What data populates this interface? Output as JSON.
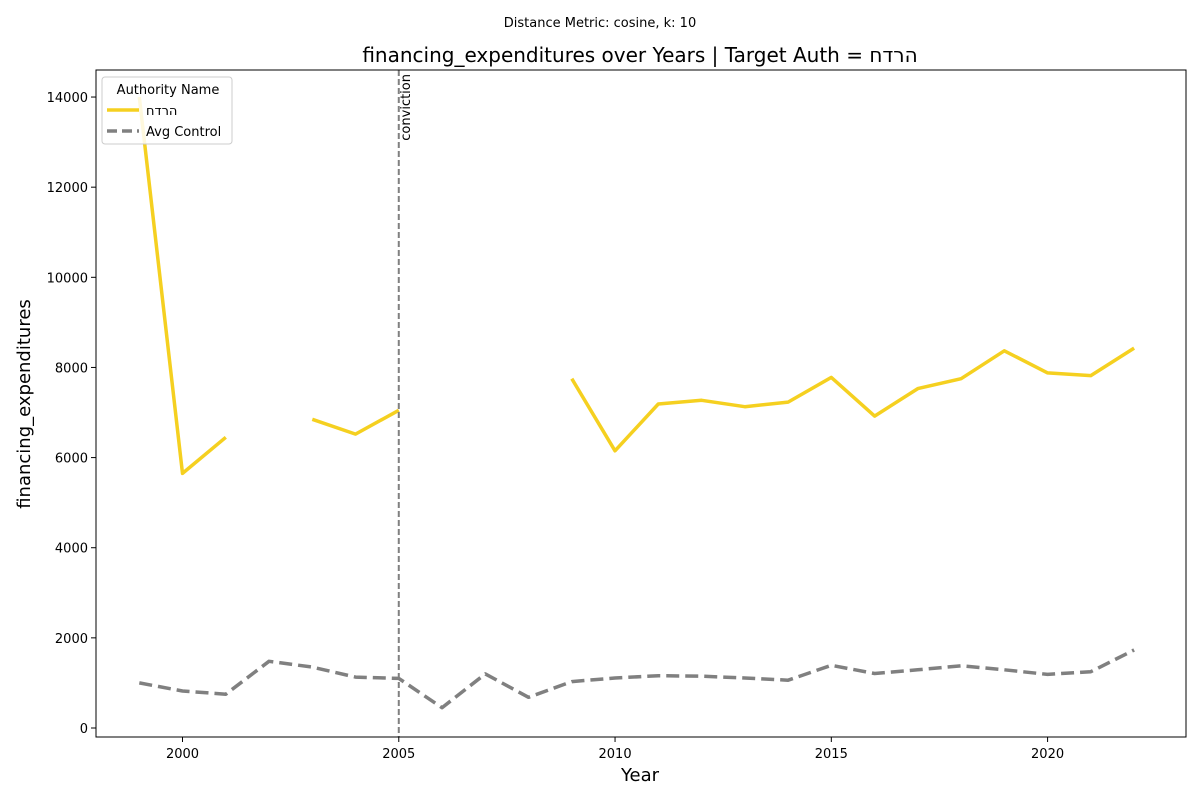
{
  "chart_data": {
    "type": "line",
    "suptitle": "Distance Metric: cosine, k: 10",
    "title": "financing_expenditures over Years | Target Auth = הרדח",
    "xlabel": "Year",
    "ylabel": "financing_expenditures",
    "xlim": [
      1998,
      2023.2
    ],
    "ylim": [
      -200,
      14600
    ],
    "xticks": [
      2000,
      2005,
      2010,
      2015,
      2020
    ],
    "yticks": [
      0,
      2000,
      4000,
      6000,
      8000,
      10000,
      12000,
      14000
    ],
    "x": [
      1999,
      2000,
      2001,
      2002,
      2003,
      2004,
      2005,
      2006,
      2007,
      2008,
      2009,
      2010,
      2011,
      2012,
      2013,
      2014,
      2015,
      2016,
      2017,
      2018,
      2019,
      2020,
      2021,
      2022
    ],
    "series": [
      {
        "name": "הרדח",
        "color": "#f5d020",
        "style": "solid",
        "values": [
          14000,
          5650,
          6450,
          null,
          6850,
          6520,
          7050,
          null,
          null,
          null,
          7750,
          6150,
          7190,
          7270,
          7130,
          7230,
          7780,
          6920,
          7530,
          7750,
          8370,
          7880,
          7820,
          8430
        ]
      },
      {
        "name": "Avg Control",
        "color": "#808080",
        "style": "dashed",
        "values": [
          1000,
          820,
          750,
          1480,
          1350,
          1130,
          1100,
          450,
          1200,
          680,
          1030,
          1110,
          1160,
          1150,
          1110,
          1060,
          1390,
          1210,
          1290,
          1380,
          1290,
          1190,
          1250,
          1730
        ]
      }
    ],
    "legend": {
      "title": "Authority Name",
      "placement": "top-left"
    },
    "annotations": [
      {
        "x": 2005,
        "label": "conviction",
        "style": "dashed",
        "color": "#808080"
      }
    ],
    "grid": false
  }
}
